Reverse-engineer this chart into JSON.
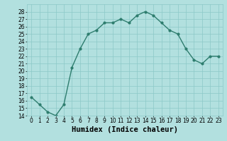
{
  "x": [
    0,
    1,
    2,
    3,
    4,
    5,
    6,
    7,
    8,
    9,
    10,
    11,
    12,
    13,
    14,
    15,
    16,
    17,
    18,
    19,
    20,
    21,
    22,
    23
  ],
  "y": [
    16.5,
    15.5,
    14.5,
    14.0,
    15.5,
    20.5,
    23.0,
    25.0,
    25.5,
    26.5,
    26.5,
    27.0,
    26.5,
    27.5,
    28.0,
    27.5,
    26.5,
    25.5,
    25.0,
    23.0,
    21.5,
    21.0,
    22.0,
    22.0
  ],
  "line_color": "#2e7d6e",
  "marker": "o",
  "markersize": 2.0,
  "linewidth": 1.0,
  "bg_color": "#b2e0df",
  "grid_color": "#8cc8c8",
  "xlabel": "Humidex (Indice chaleur)",
  "xlim": [
    -0.5,
    23.5
  ],
  "ylim": [
    14,
    29
  ],
  "yticks": [
    14,
    15,
    16,
    17,
    18,
    19,
    20,
    21,
    22,
    23,
    24,
    25,
    26,
    27,
    28
  ],
  "xtick_labels": [
    "0",
    "1",
    "2",
    "3",
    "4",
    "5",
    "6",
    "7",
    "8",
    "9",
    "10",
    "11",
    "12",
    "13",
    "14",
    "15",
    "16",
    "17",
    "18",
    "19",
    "20",
    "21",
    "22",
    "23"
  ],
  "tick_fontsize": 5.5,
  "xlabel_fontsize": 7.5
}
